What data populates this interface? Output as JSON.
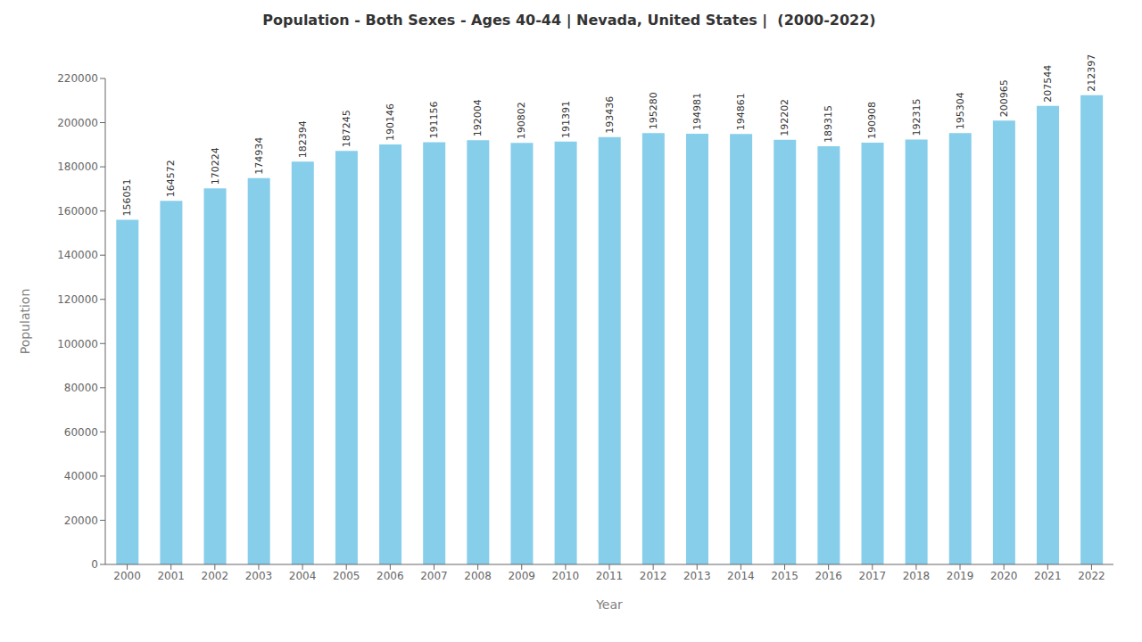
{
  "chart_data": {
    "type": "bar",
    "title": "Population - Both Sexes - Ages 40-44 | Nevada, United States |  (2000-2022)",
    "x_label": "Year",
    "y_label": "Population",
    "categories": [
      "2000",
      "2001",
      "2002",
      "2003",
      "2004",
      "2005",
      "2006",
      "2007",
      "2008",
      "2009",
      "2010",
      "2011",
      "2012",
      "2013",
      "2014",
      "2015",
      "2016",
      "2017",
      "2018",
      "2019",
      "2020",
      "2021",
      "2022"
    ],
    "values": [
      156051,
      164572,
      170224,
      174934,
      182394,
      187245,
      190146,
      191156,
      192004,
      190802,
      191391,
      193436,
      195280,
      194981,
      194861,
      192202,
      189315,
      190908,
      192315,
      195304,
      200965,
      207544,
      212397
    ],
    "color": "#87CEEB",
    "ylim": [
      0,
      220000
    ],
    "yticks": [
      0,
      20000,
      40000,
      60000,
      80000,
      100000,
      120000,
      140000,
      160000,
      180000,
      200000,
      220000
    ],
    "grid": false,
    "data_labels": true
  }
}
